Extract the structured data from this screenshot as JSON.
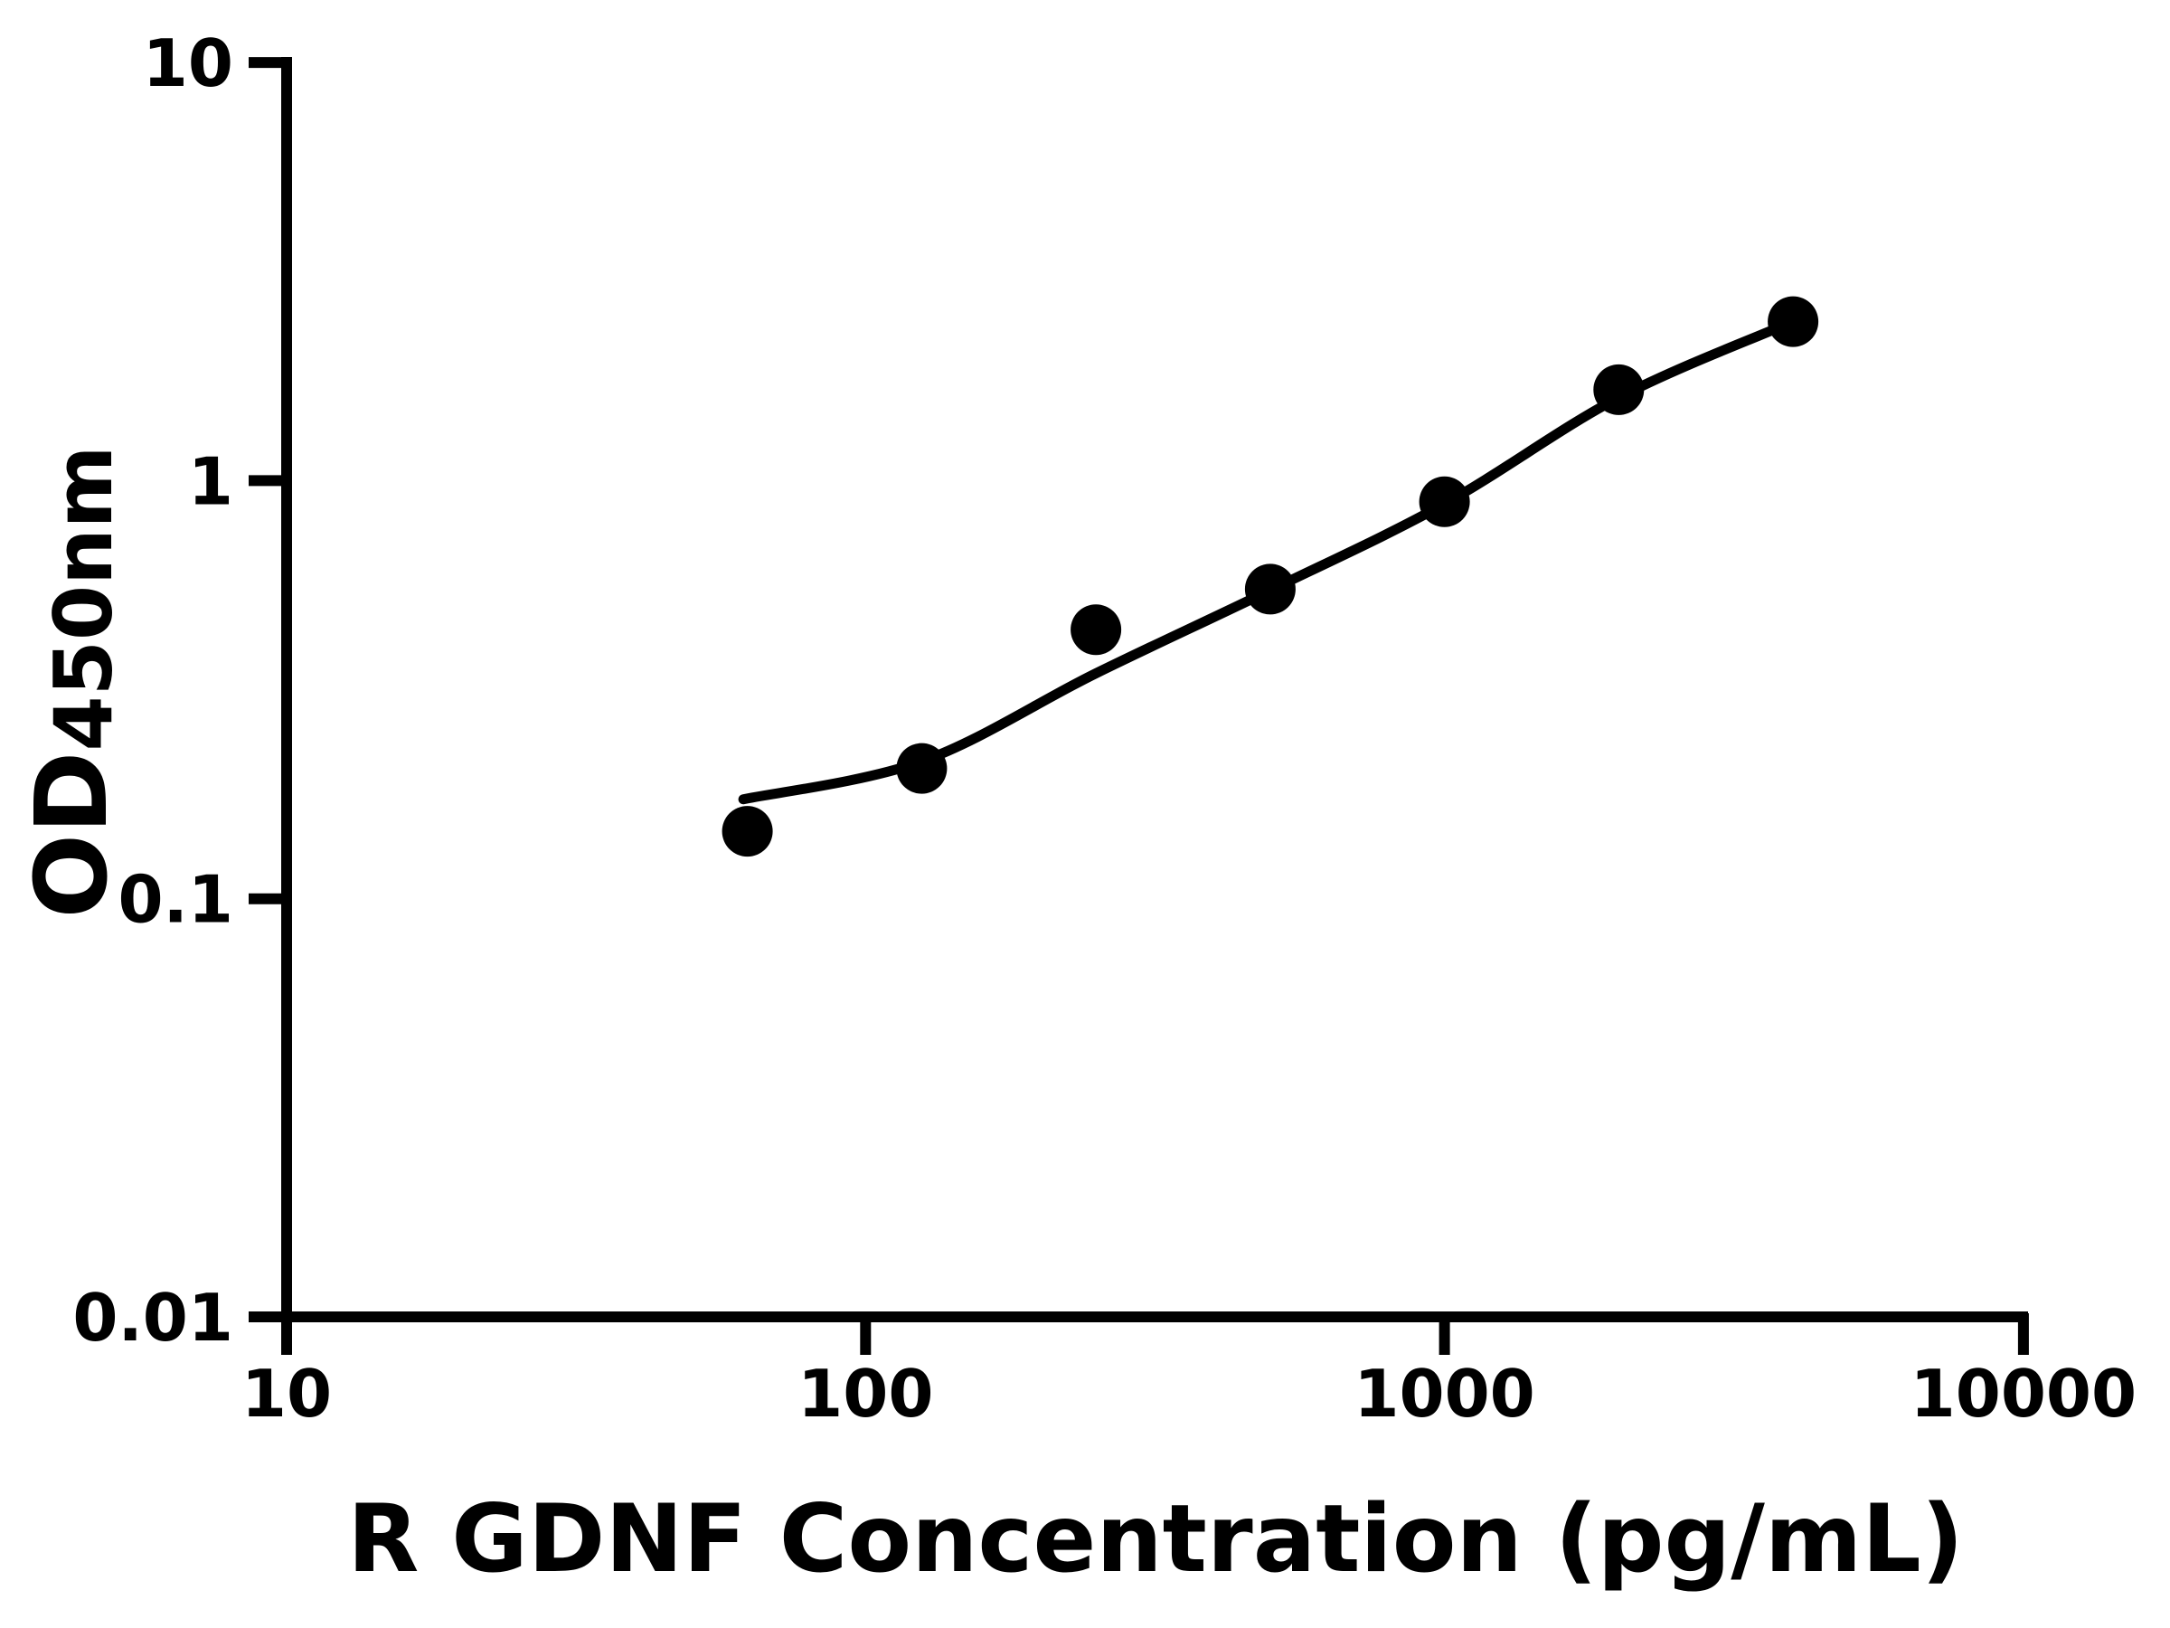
{
  "figure": {
    "background": "#ffffff",
    "foreground": "#000000"
  },
  "chart_data": {
    "type": "scatter",
    "title": "",
    "xlabel": "R GDNF Concentration (pg/mL)",
    "ylabel": "OD450nm",
    "ylabel_main": "OD",
    "ylabel_sub": "450nm",
    "x_scale": "log",
    "y_scale": "log",
    "xlim": [
      10,
      10000
    ],
    "ylim": [
      0.01,
      10
    ],
    "grid": false,
    "legend": false,
    "marker_color": "#000000",
    "line_color": "#000000",
    "x_ticks": [
      {
        "value": 10,
        "label": "10"
      },
      {
        "value": 100,
        "label": "100"
      },
      {
        "value": 1000,
        "label": "1000"
      },
      {
        "value": 10000,
        "label": "10000"
      }
    ],
    "y_ticks": [
      {
        "value": 10,
        "label": "10"
      },
      {
        "value": 1,
        "label": "1"
      },
      {
        "value": 0.1,
        "label": "0.1"
      },
      {
        "value": 0.01,
        "label": "0.01"
      }
    ],
    "series": [
      {
        "name": "standards",
        "type": "scatter",
        "points": [
          [
            62.5,
            0.145
          ],
          [
            125,
            0.205
          ],
          [
            250,
            0.44
          ],
          [
            500,
            0.55
          ],
          [
            1000,
            0.89
          ],
          [
            2000,
            1.65
          ],
          [
            4000,
            2.4
          ]
        ]
      },
      {
        "name": "fit-curve",
        "type": "line",
        "points": [
          [
            61.5,
            0.173
          ],
          [
            125,
            0.213
          ],
          [
            250,
            0.346
          ],
          [
            500,
            0.547
          ],
          [
            1000,
            0.88
          ],
          [
            2000,
            1.58
          ],
          [
            4000,
            2.4
          ]
        ]
      }
    ]
  }
}
